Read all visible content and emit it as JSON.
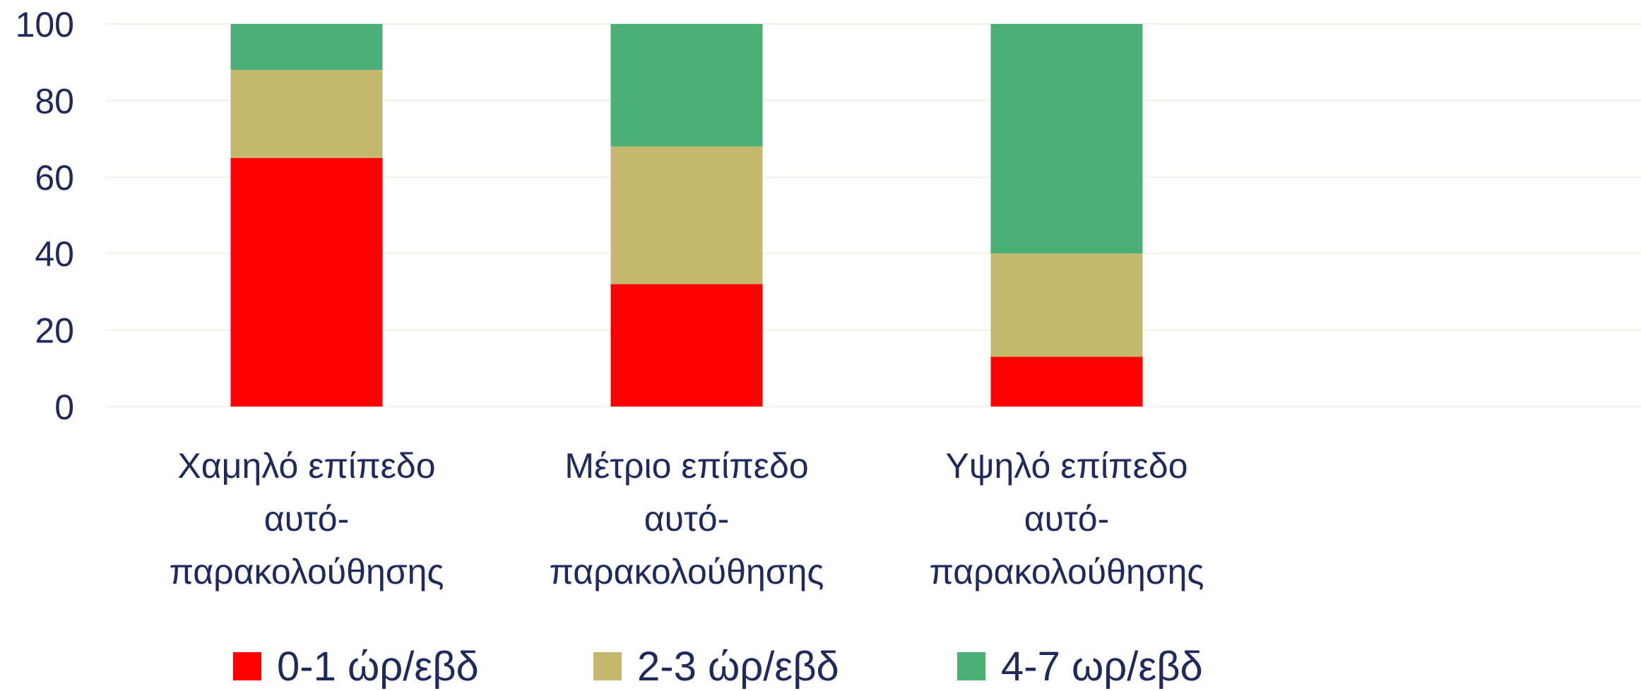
{
  "chart_data": {
    "type": "bar",
    "stacked": true,
    "categories": [
      [
        "Χαμηλό επίπεδο",
        "αυτό-",
        "παρακολούθησης"
      ],
      [
        "Μέτριο επίπεδο",
        "αυτό-",
        "παρακολούθησης"
      ],
      [
        "Υψηλό επίπεδο",
        "αυτό-",
        "παρακολούθησης"
      ]
    ],
    "series": [
      {
        "name": "0-1 ώρ/εβδ",
        "color": "#ff0000",
        "values": [
          65,
          32,
          13
        ]
      },
      {
        "name": "2-3 ώρ/εβδ",
        "color": "#c4b76e",
        "values": [
          23,
          36,
          27
        ]
      },
      {
        "name": "4-7 ωρ/εβδ",
        "color": "#4caf75",
        "values": [
          12,
          32,
          60
        ]
      }
    ],
    "yticks": [
      "0",
      "20",
      "40",
      "60",
      "80",
      "100"
    ],
    "ylim": [
      0,
      100
    ],
    "grid": true,
    "legend_position": "bottom",
    "title": "",
    "xlabel": "",
    "ylabel": ""
  }
}
